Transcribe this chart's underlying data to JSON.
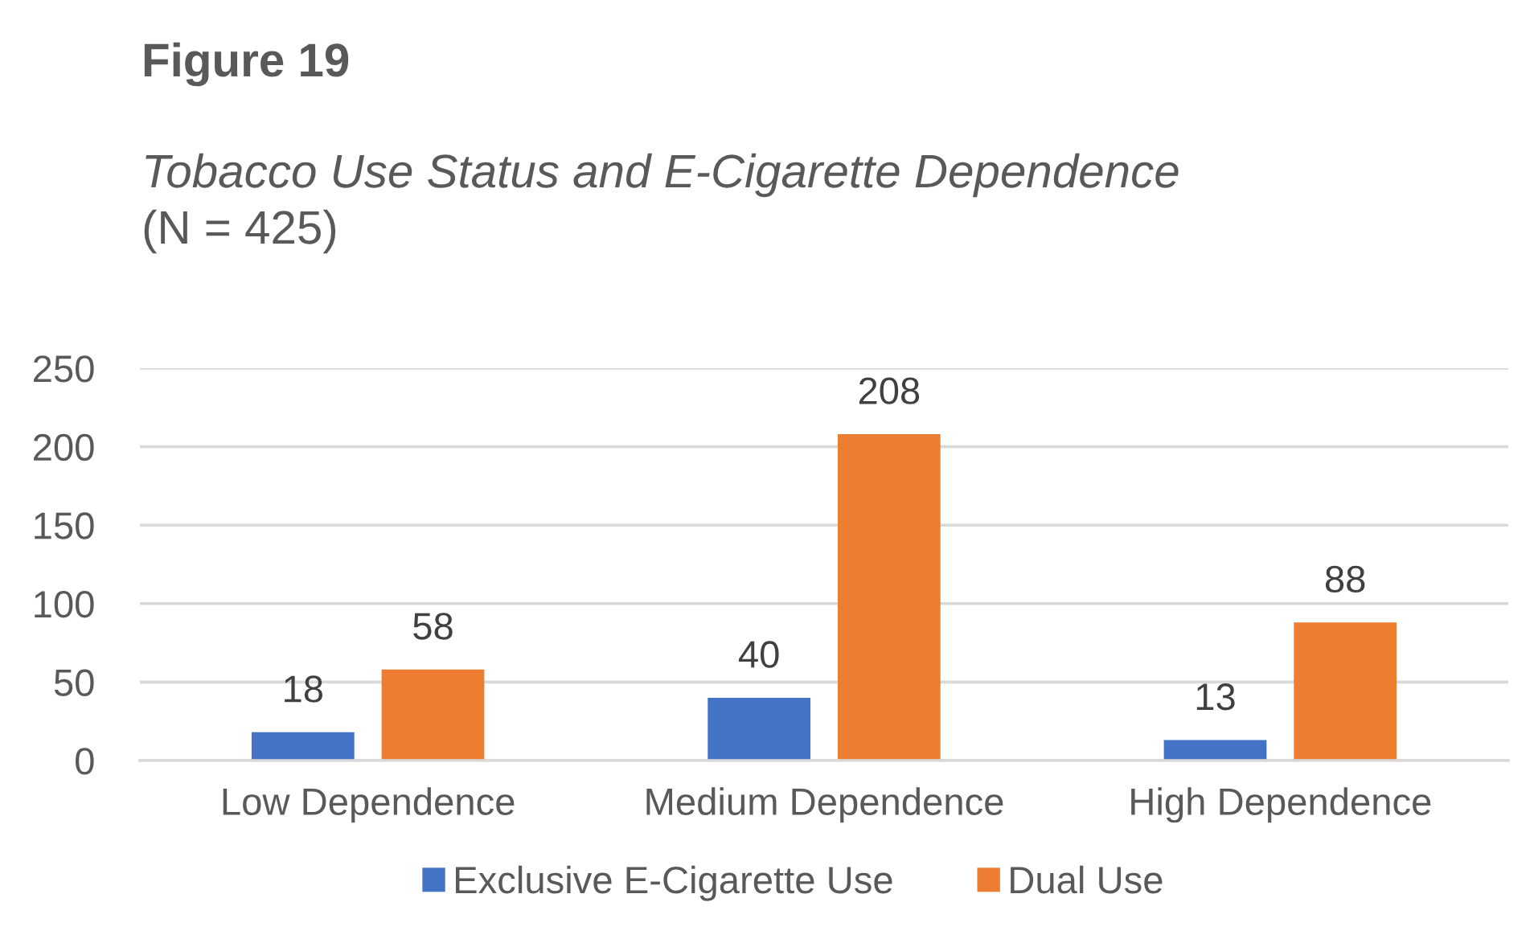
{
  "chart_data": {
    "type": "bar",
    "title": "Figure 19",
    "subtitle": "Tobacco Use Status and E-Cigarette Dependence",
    "annotations": [
      "(N = 425)"
    ],
    "categories": [
      "Low Dependence",
      "Medium Dependence",
      "High Dependence"
    ],
    "series": [
      {
        "name": "Exclusive E-Cigarette Use",
        "color": "#4472c4",
        "values": [
          18,
          40,
          13
        ]
      },
      {
        "name": "Dual Use",
        "color": "#ed7d31",
        "values": [
          58,
          208,
          88
        ]
      }
    ],
    "ylim": [
      0,
      250
    ],
    "yticks": [
      0,
      50,
      100,
      150,
      200,
      250
    ],
    "grid": "y",
    "legend": "bottom",
    "data_labels": true
  }
}
